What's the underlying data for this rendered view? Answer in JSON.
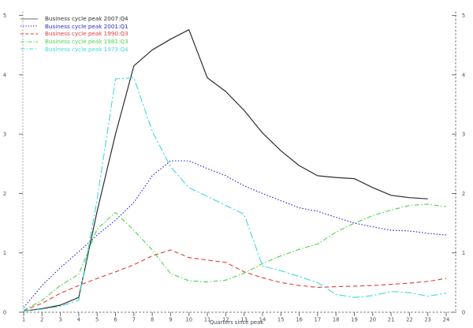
{
  "axes": {
    "x": {
      "label": "Quarters since peak",
      "ticks": [
        1,
        2,
        3,
        4,
        5,
        6,
        7,
        8,
        9,
        10,
        11,
        12,
        13,
        14,
        15,
        16,
        17,
        18,
        19,
        20,
        21,
        22,
        23,
        24
      ],
      "range": [
        1,
        24
      ]
    },
    "y_left": {
      "ticks": [
        0,
        1,
        2,
        3,
        4,
        5
      ],
      "range": [
        0,
        5
      ]
    },
    "y_right": {
      "ticks": [
        0,
        1,
        2,
        3,
        4,
        5
      ],
      "range": [
        0,
        5
      ]
    }
  },
  "chart_data": {
    "type": "line",
    "title": "",
    "xlabel": "Quarters since peak",
    "ylabel": "",
    "x": [
      1,
      2,
      3,
      4,
      5,
      6,
      7,
      8,
      9,
      10,
      11,
      12,
      13,
      14,
      15,
      16,
      17,
      18,
      19,
      20,
      21,
      22,
      23,
      24
    ],
    "xlim": [
      1,
      24
    ],
    "ylim": [
      0,
      5
    ],
    "grid": false,
    "legend_position": "top-left",
    "series": [
      {
        "name": "Business cycle peak 2007:Q4",
        "color": "#2e2e2e",
        "legend_sample_color": "#8a8a8a",
        "text_color": "#323232",
        "dash": "solid",
        "width": 1.2,
        "values": [
          0.02,
          0.06,
          0.12,
          0.25,
          1.7,
          3.0,
          4.15,
          4.42,
          4.6,
          4.76,
          3.95,
          3.72,
          3.4,
          3.02,
          2.72,
          2.47,
          2.3,
          2.27,
          2.25,
          2.1,
          1.97,
          1.93,
          1.91
        ]
      },
      {
        "name": "Business cycle peak 2001:Q1",
        "color": "#2b2bd0",
        "dash": "dotted",
        "width": 1.1,
        "values": [
          0.08,
          0.45,
          0.75,
          1.02,
          1.3,
          1.55,
          1.85,
          2.3,
          2.55,
          2.55,
          2.42,
          2.3,
          2.13,
          2.0,
          1.88,
          1.76,
          1.7,
          1.6,
          1.5,
          1.44,
          1.38,
          1.37,
          1.33,
          1.3
        ]
      },
      {
        "name": "Business cycle peak 1990:Q3",
        "color": "#e23b3b",
        "dash": "dashed",
        "width": 1.1,
        "values": [
          0.03,
          0.15,
          0.32,
          0.45,
          0.57,
          0.68,
          0.8,
          0.95,
          1.05,
          0.92,
          0.88,
          0.84,
          0.68,
          0.58,
          0.5,
          0.45,
          0.42,
          0.43,
          0.44,
          0.45,
          0.47,
          0.49,
          0.52,
          0.57
        ]
      },
      {
        "name": "Business cycle peak 1981:Q3",
        "color": "#4bd44b",
        "dash": "dash-dot",
        "width": 1.1,
        "values": [
          0.03,
          0.2,
          0.45,
          0.64,
          1.4,
          1.68,
          1.38,
          1.05,
          0.65,
          0.53,
          0.51,
          0.54,
          0.66,
          0.82,
          0.95,
          1.06,
          1.15,
          1.35,
          1.5,
          1.63,
          1.72,
          1.8,
          1.82,
          1.78
        ]
      },
      {
        "name": "Business cycle peak 1973:Q4",
        "color": "#43d8d8",
        "dash": "long-dash-dot",
        "width": 1.1,
        "values": [
          0.02,
          0.05,
          0.1,
          0.2,
          1.9,
          3.93,
          3.95,
          3.05,
          2.45,
          2.1,
          1.95,
          1.8,
          1.65,
          0.78,
          0.7,
          0.6,
          0.5,
          0.3,
          0.25,
          0.28,
          0.35,
          0.33,
          0.27,
          0.32
        ]
      }
    ]
  }
}
